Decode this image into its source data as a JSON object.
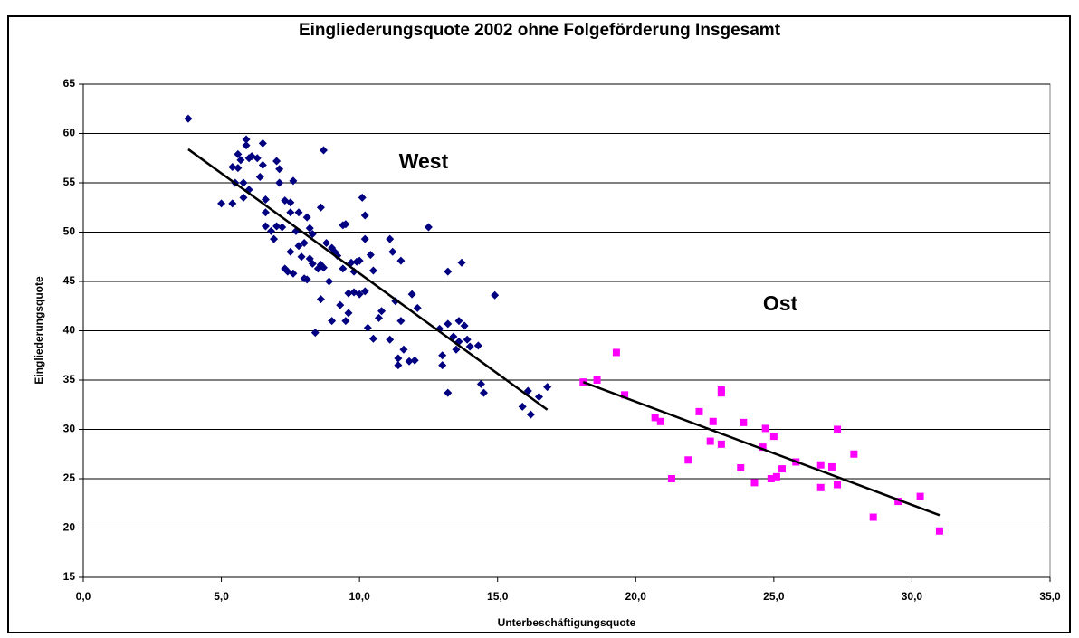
{
  "chart_data": {
    "type": "scatter",
    "title": "Eingliederungsquote 2002 ohne Folgeförderung Insgesamt",
    "x_label": "Unterbeschäftigungsquote",
    "y_label": "Eingliederungsquote",
    "xlim": [
      0,
      35
    ],
    "ylim": [
      15,
      65
    ],
    "xticks": [
      {
        "value": 0,
        "label": "0,0"
      },
      {
        "value": 5,
        "label": "5,0"
      },
      {
        "value": 10,
        "label": "10,0"
      },
      {
        "value": 15,
        "label": "15,0"
      },
      {
        "value": 20,
        "label": "20,0"
      },
      {
        "value": 25,
        "label": "25,0"
      },
      {
        "value": 30,
        "label": "30,0"
      },
      {
        "value": 35,
        "label": "35,0"
      }
    ],
    "yticks": [
      15,
      20,
      25,
      30,
      35,
      40,
      45,
      50,
      55,
      60,
      65
    ],
    "grid": true,
    "series": [
      {
        "name": "West",
        "color": "#000080",
        "marker": "diamond",
        "x": [
          3.8,
          5.0,
          5.4,
          5.4,
          5.5,
          5.6,
          5.6,
          5.7,
          5.8,
          5.8,
          5.9,
          5.9,
          6.0,
          6.0,
          6.1,
          6.3,
          6.4,
          6.5,
          6.5,
          6.6,
          6.6,
          6.6,
          6.8,
          6.9,
          7.0,
          7.0,
          7.1,
          7.1,
          7.2,
          7.3,
          7.3,
          7.4,
          7.5,
          7.5,
          7.5,
          7.6,
          7.6,
          7.7,
          7.8,
          7.8,
          7.9,
          8.0,
          8.0,
          8.1,
          8.1,
          8.2,
          8.2,
          8.3,
          8.3,
          8.4,
          8.5,
          8.6,
          8.6,
          8.6,
          8.7,
          8.7,
          8.8,
          8.9,
          9.0,
          9.0,
          9.1,
          9.2,
          9.3,
          9.4,
          9.4,
          9.5,
          9.5,
          9.6,
          9.6,
          9.7,
          9.8,
          9.8,
          9.9,
          10.0,
          10.0,
          10.1,
          10.2,
          10.2,
          10.2,
          10.3,
          10.4,
          10.5,
          10.5,
          10.7,
          10.8,
          11.1,
          11.1,
          11.2,
          11.3,
          11.4,
          11.4,
          11.5,
          11.5,
          11.6,
          11.8,
          11.9,
          12.0,
          12.1,
          12.5,
          12.9,
          13.0,
          13.0,
          13.2,
          13.2,
          13.2,
          13.4,
          13.5,
          13.6,
          13.6,
          13.7,
          13.8,
          13.9,
          14.0,
          14.3,
          14.4,
          14.5,
          14.9,
          15.9,
          16.1,
          16.2,
          16.5,
          16.8
        ],
        "values": [
          61.5,
          52.9,
          52.9,
          56.6,
          55.0,
          57.9,
          56.5,
          57.3,
          55.0,
          53.5,
          58.8,
          59.4,
          57.5,
          54.3,
          57.7,
          57.5,
          55.6,
          59.0,
          56.8,
          53.3,
          50.6,
          52.0,
          50.1,
          49.3,
          57.2,
          50.6,
          55.0,
          56.4,
          50.5,
          53.2,
          46.3,
          46.0,
          53.0,
          52.0,
          48.0,
          45.8,
          55.2,
          50.1,
          52.0,
          48.6,
          47.5,
          48.9,
          45.3,
          51.5,
          45.2,
          50.4,
          47.3,
          49.8,
          46.8,
          39.8,
          46.3,
          52.5,
          46.7,
          43.2,
          58.3,
          46.4,
          48.9,
          45.0,
          48.4,
          41.0,
          48.0,
          47.6,
          42.6,
          50.7,
          46.3,
          50.8,
          41.0,
          43.8,
          41.8,
          46.9,
          43.9,
          46.0,
          47.0,
          47.1,
          43.7,
          53.5,
          51.7,
          49.3,
          44.0,
          40.3,
          47.7,
          46.1,
          39.2,
          41.3,
          42.0,
          49.3,
          39.1,
          48.0,
          43.0,
          37.2,
          36.5,
          41.0,
          47.1,
          38.1,
          36.9,
          43.7,
          37.0,
          42.3,
          50.5,
          40.2,
          37.5,
          36.5,
          40.7,
          46.0,
          33.7,
          39.4,
          38.1,
          41.0,
          38.9,
          46.9,
          40.5,
          39.1,
          38.4,
          38.5,
          34.6,
          33.7,
          43.6,
          32.3,
          33.9,
          31.5,
          33.3,
          34.3
        ],
        "trendline": {
          "x": [
            3.8,
            16.8
          ],
          "values": [
            58.4,
            32.0
          ]
        }
      },
      {
        "name": "Ost",
        "color": "#ff00ff",
        "marker": "square",
        "x": [
          18.1,
          18.6,
          19.3,
          19.6,
          20.7,
          20.9,
          21.3,
          21.9,
          22.3,
          22.7,
          22.8,
          23.1,
          23.1,
          23.1,
          23.8,
          23.9,
          24.3,
          24.6,
          24.7,
          24.9,
          25.0,
          25.1,
          25.3,
          25.8,
          26.7,
          26.7,
          27.1,
          27.3,
          27.3,
          27.9,
          28.6,
          29.5,
          30.3,
          31.0
        ],
        "values": [
          34.8,
          35.0,
          37.8,
          33.5,
          31.2,
          30.8,
          25.0,
          26.9,
          31.8,
          28.8,
          30.8,
          33.7,
          34.0,
          28.5,
          26.1,
          30.7,
          24.6,
          28.2,
          30.1,
          25.0,
          29.3,
          25.2,
          26.0,
          26.7,
          24.1,
          26.4,
          26.2,
          30.0,
          24.4,
          27.5,
          21.1,
          22.7,
          23.2,
          19.7
        ],
        "trendline": {
          "x": [
            18.1,
            31.0
          ],
          "values": [
            34.8,
            21.3
          ]
        }
      }
    ]
  }
}
